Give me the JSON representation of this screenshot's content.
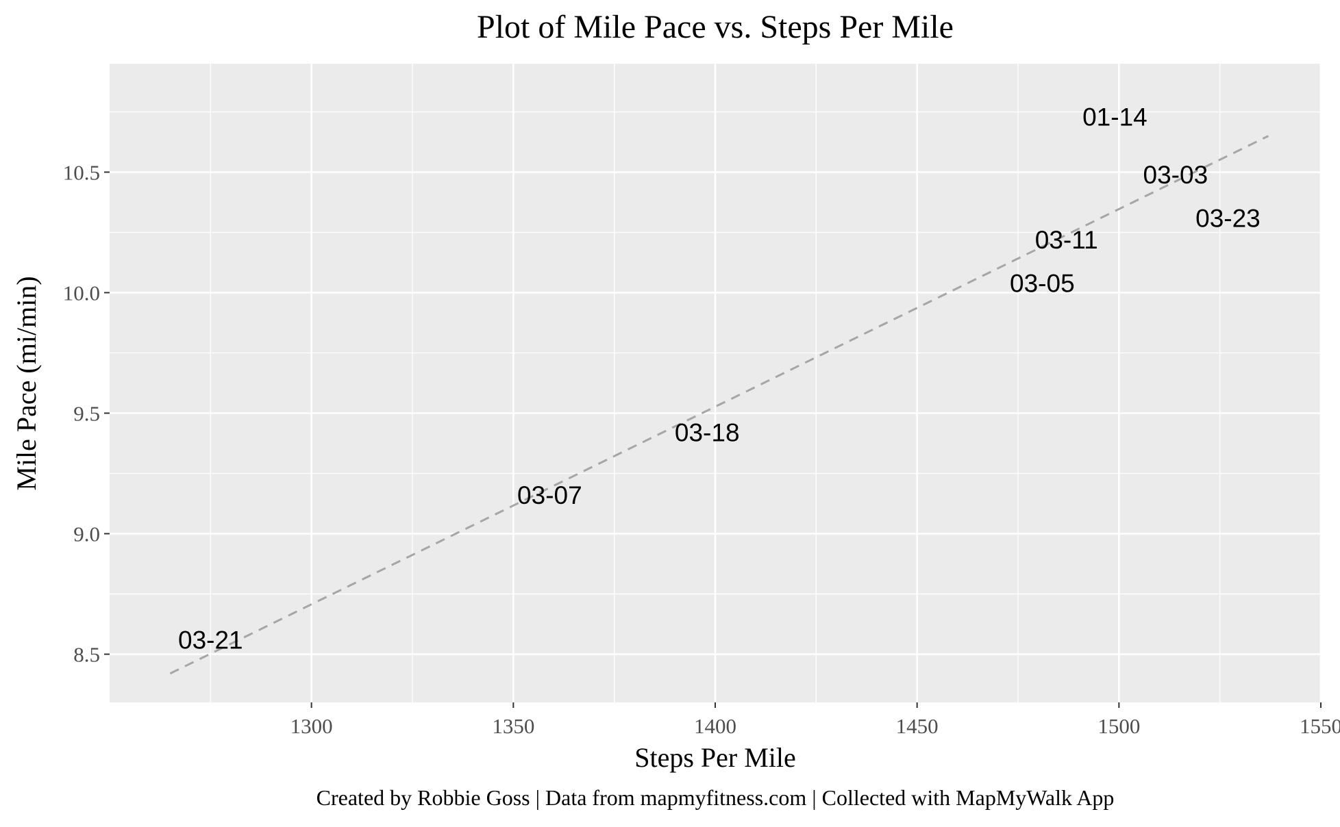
{
  "chart_data": {
    "type": "scatter",
    "title": "Plot of Mile Pace vs. Steps Per Mile",
    "xlabel": "Steps Per Mile",
    "ylabel": "Mile Pace (mi/min)",
    "caption": "Created by Robbie Goss | Data from mapmyfitness.com | Collected with MapMyWalk App",
    "xlim": [
      1250,
      1550
    ],
    "ylim": [
      8.3,
      10.95
    ],
    "x_ticks": [
      1300,
      1350,
      1400,
      1450,
      1500,
      1550
    ],
    "x_tick_labels": [
      "1300",
      "1350",
      "1400",
      "1450",
      "1500",
      "1550"
    ],
    "y_ticks": [
      8.5,
      9.0,
      9.5,
      10.0,
      10.5
    ],
    "y_tick_labels": [
      "8.5",
      "9.0",
      "9.5",
      "10.0",
      "10.5"
    ],
    "grid": true,
    "legend": "none",
    "points": [
      {
        "label": "01-14",
        "x": 1499,
        "y": 10.73
      },
      {
        "label": "03-03",
        "x": 1514,
        "y": 10.49
      },
      {
        "label": "03-23",
        "x": 1527,
        "y": 10.31
      },
      {
        "label": "03-11",
        "x": 1487,
        "y": 10.22
      },
      {
        "label": "03-05",
        "x": 1481,
        "y": 10.04
      },
      {
        "label": "03-18",
        "x": 1398,
        "y": 9.42
      },
      {
        "label": "03-07",
        "x": 1359,
        "y": 9.16
      },
      {
        "label": "03-21",
        "x": 1275,
        "y": 8.56
      }
    ],
    "trendline": {
      "style": "dashed",
      "x": [
        1265,
        1537
      ],
      "y": [
        8.42,
        10.65
      ]
    },
    "colors": {
      "panel": "#ebebeb",
      "grid": "#ffffff",
      "trend": "#a6a6a6",
      "label": "#000000",
      "axis_text": "#4d4d4d"
    }
  }
}
